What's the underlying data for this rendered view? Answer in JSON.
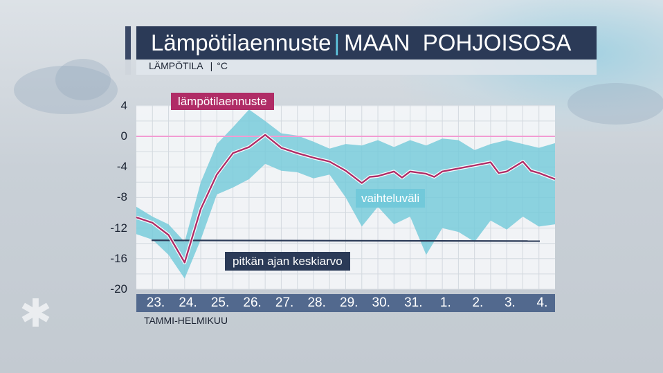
{
  "header": {
    "title": "Lämpötilaennuste",
    "region": "MAAN  POHJOISOSA",
    "quantity": "LÄMPÖTILA",
    "unit": "°C"
  },
  "colors": {
    "forecast": "#b02c66",
    "range": "#72c9da",
    "average": "#2b3a57",
    "zero_line": "#f29bd2",
    "date_bar": "#52698e"
  },
  "chart_data": {
    "type": "line",
    "title": "Lämpötilaennuste",
    "ylabel": "LÄMPÖTILA °C",
    "xlabel": "TAMMI-HELMIKUU",
    "ylim": [
      -20,
      4.6
    ],
    "xlim": [
      23,
      36
    ],
    "yticks": [
      "4",
      "0",
      "-4",
      "-8",
      "-12",
      "-16",
      "-20"
    ],
    "xticks": [
      "23.",
      "24.",
      "25.",
      "26.",
      "27.",
      "28.",
      "29.",
      "30.",
      "31.",
      "1.",
      "2.",
      "3.",
      "4."
    ],
    "grid": true,
    "series": [
      {
        "name": "lämpötilaennuste",
        "x": [
          23.0,
          23.5,
          24.0,
          24.5,
          25.0,
          25.5,
          26.0,
          26.5,
          27.0,
          27.5,
          28.0,
          28.5,
          29.0,
          29.5,
          30.0,
          30.25,
          30.5,
          31.0,
          31.25,
          31.5,
          32.0,
          32.25,
          32.5,
          33.0,
          33.5,
          34.0,
          34.25,
          34.5,
          35.0,
          35.25,
          35.5,
          36.0
        ],
        "values": [
          -10.6,
          -11.3,
          -12.9,
          -16.5,
          -9.5,
          -5.0,
          -2.2,
          -1.4,
          0.2,
          -1.5,
          -2.2,
          -2.8,
          -3.3,
          -4.5,
          -6.1,
          -5.3,
          -5.2,
          -4.6,
          -5.4,
          -4.6,
          -4.9,
          -5.3,
          -4.6,
          -4.2,
          -3.8,
          -3.4,
          -4.8,
          -4.6,
          -3.3,
          -4.5,
          -4.8,
          -5.6
        ]
      },
      {
        "name": "pitkän ajan keskiarvo",
        "x": [
          23.0,
          36.0
        ],
        "values": [
          -13.6,
          -13.7
        ]
      },
      {
        "name": "vaihteluväli",
        "type": "area",
        "x": [
          23.0,
          23.5,
          24.0,
          24.5,
          25.0,
          25.5,
          26.0,
          26.5,
          27.0,
          27.5,
          28.0,
          28.5,
          29.0,
          29.5,
          30.0,
          30.5,
          31.0,
          31.5,
          32.0,
          32.5,
          33.0,
          33.5,
          34.0,
          34.5,
          35.0,
          35.5,
          36.0
        ],
        "upper": [
          -9.2,
          -10.5,
          -11.5,
          -13.8,
          -6.0,
          -1.0,
          1.2,
          3.5,
          2.0,
          0.4,
          0.1,
          -0.7,
          -1.6,
          -1.0,
          -1.2,
          -0.5,
          -1.4,
          -0.5,
          -1.2,
          -0.3,
          -0.5,
          -1.8,
          -1.0,
          -0.5,
          -1.0,
          -1.5,
          -0.9
        ],
        "lower": [
          -12.8,
          -13.5,
          -15.5,
          -18.6,
          -13.5,
          -7.6,
          -6.7,
          -5.6,
          -3.6,
          -4.5,
          -4.7,
          -5.5,
          -5.0,
          -8.0,
          -11.8,
          -9.2,
          -11.5,
          -10.5,
          -15.5,
          -12.0,
          -12.5,
          -13.8,
          -11.0,
          -12.2,
          -10.5,
          -11.8,
          -11.5
        ]
      }
    ],
    "annotations": [
      "lämpötilaennuste",
      "vaihteluväli",
      "pitkän ajan keskiarvo"
    ]
  }
}
